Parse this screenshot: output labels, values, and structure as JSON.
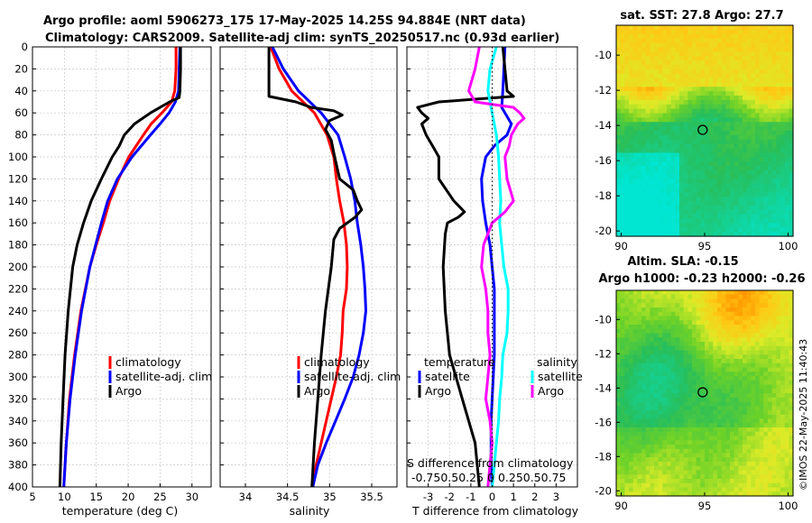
{
  "header": {
    "line1": "Argo profile: aoml 5906273_175 17-May-2025 14.25S 94.884E (NRT data)",
    "line2": "Climatology: CARS2009. Satellite-adj clim: synTS_20250517.nc (0.93d earlier)"
  },
  "colors": {
    "clim": "#ff0000",
    "sat": "#0000ff",
    "argo": "#000000",
    "sat_sal": "#00ffff",
    "argo_sal": "#ff00ff",
    "grid": "#c8c8c8"
  },
  "chart_data": [
    {
      "type": "line",
      "id": "temperature",
      "xlabel": "temperature (deg C)",
      "xlim": [
        5,
        33
      ],
      "ylim": [
        0,
        400
      ],
      "xticks": [
        "5",
        "10",
        "15",
        "20",
        "25",
        "30"
      ],
      "yticks": [
        "0",
        "20",
        "40",
        "60",
        "80",
        "100",
        "120",
        "140",
        "160",
        "180",
        "200",
        "220",
        "240",
        "260",
        "280",
        "300",
        "320",
        "340",
        "360",
        "380",
        "400"
      ],
      "series": [
        {
          "name": "climatology",
          "color": "#ff0000",
          "pressure": [
            0,
            20,
            40,
            50,
            60,
            70,
            80,
            100,
            120,
            140,
            160,
            180,
            200,
            240,
            280,
            320,
            360,
            400
          ],
          "values": [
            27.5,
            27.5,
            27.3,
            26.8,
            25.3,
            23.6,
            22.4,
            20.1,
            18.5,
            17.1,
            16.1,
            15.0,
            14.0,
            12.6,
            11.6,
            10.8,
            10.3,
            9.9
          ]
        },
        {
          "name": "satellite-adj. clim",
          "color": "#0000ff",
          "pressure": [
            0,
            20,
            40,
            50,
            60,
            70,
            80,
            100,
            120,
            140,
            160,
            180,
            200,
            240,
            280,
            320,
            360,
            400
          ],
          "values": [
            28.1,
            28.0,
            27.9,
            27.4,
            26.4,
            25.0,
            23.5,
            20.6,
            18.3,
            16.8,
            15.8,
            14.9,
            14.0,
            12.7,
            11.7,
            10.9,
            10.3,
            9.9
          ]
        },
        {
          "name": "Argo",
          "color": "#000000",
          "pressure": [
            0,
            20,
            40,
            46,
            50,
            60,
            70,
            80,
            90,
            100,
            120,
            140,
            160,
            180,
            200,
            240,
            280,
            320,
            360,
            400
          ],
          "values": [
            28.2,
            28.2,
            28.1,
            28.0,
            26.5,
            23.5,
            21.0,
            19.4,
            18.6,
            17.5,
            15.8,
            14.2,
            13.0,
            12.0,
            11.3,
            10.6,
            10.1,
            9.8,
            9.5,
            9.3
          ]
        }
      ],
      "legend": [
        "climatology",
        "satellite-adj. clim",
        "Argo"
      ]
    },
    {
      "type": "line",
      "id": "salinity",
      "xlabel": "salinity",
      "xlim": [
        33.7,
        35.8
      ],
      "ylim": [
        0,
        400
      ],
      "xticks": [
        "34",
        "34.5",
        "35",
        "35.5"
      ],
      "series": [
        {
          "name": "climatology",
          "color": "#ff0000",
          "pressure": [
            0,
            20,
            40,
            60,
            80,
            100,
            120,
            140,
            160,
            180,
            200,
            220,
            240,
            260,
            280,
            300,
            320,
            340,
            360,
            380,
            400
          ],
          "values": [
            34.3,
            34.4,
            34.55,
            34.82,
            34.97,
            35.05,
            35.08,
            35.12,
            35.17,
            35.2,
            35.21,
            35.2,
            35.16,
            35.15,
            35.13,
            35.08,
            35.02,
            34.96,
            34.9,
            34.84,
            34.8
          ]
        },
        {
          "name": "satellite-adj. clim",
          "color": "#0000ff",
          "pressure": [
            0,
            20,
            40,
            60,
            80,
            100,
            120,
            140,
            160,
            180,
            200,
            220,
            240,
            260,
            280,
            300,
            320,
            340,
            360,
            380,
            400
          ],
          "values": [
            34.32,
            34.45,
            34.63,
            34.9,
            35.1,
            35.18,
            35.25,
            35.3,
            35.33,
            35.37,
            35.4,
            35.42,
            35.43,
            35.4,
            35.35,
            35.28,
            35.18,
            35.07,
            34.96,
            34.86,
            34.8
          ]
        },
        {
          "name": "Argo",
          "color": "#000000",
          "pressure": [
            0,
            45,
            50,
            55,
            58,
            62,
            67,
            75,
            85,
            100,
            120,
            130,
            140,
            148,
            155,
            165,
            175,
            200,
            240,
            280,
            320,
            360,
            400
          ],
          "values": [
            34.28,
            34.28,
            34.6,
            34.78,
            35.05,
            35.15,
            35.0,
            34.95,
            35.02,
            35.06,
            35.12,
            35.28,
            35.33,
            35.38,
            35.3,
            35.12,
            35.05,
            35.02,
            34.95,
            34.9,
            34.86,
            34.82,
            34.79
          ]
        }
      ],
      "legend": [
        "climatology",
        "satellite-adj. clim",
        "Argo"
      ]
    },
    {
      "type": "line",
      "id": "differences",
      "xlabel": "T difference from climatology",
      "top_label": "S difference from climatology",
      "top_ticks": "-0.750.50.25 0  0.250.50.75",
      "xlim": [
        -4,
        4
      ],
      "ylim": [
        0,
        400
      ],
      "xticks": [
        "-3",
        "-2",
        "-1",
        "0",
        "1",
        "2",
        "3"
      ],
      "series": [
        {
          "name": "temperature satellite",
          "color": "#0000ff",
          "pressure": [
            0,
            20,
            40,
            55,
            60,
            70,
            80,
            90,
            100,
            110,
            120,
            140,
            160,
            180,
            200,
            220,
            240,
            260,
            280,
            300,
            320,
            340,
            360,
            380,
            400
          ],
          "values": [
            0.6,
            0.55,
            0.5,
            0.45,
            0.6,
            0.9,
            0.7,
            0.1,
            -0.3,
            -0.4,
            -0.5,
            -0.45,
            -0.3,
            -0.1,
            0.0,
            0.1,
            0.1,
            0.1,
            0.1,
            0.05,
            0.0,
            -0.05,
            -0.05,
            -0.05,
            0.0
          ]
        },
        {
          "name": "temperature Argo",
          "color": "#000000",
          "pressure": [
            0,
            20,
            40,
            45,
            50,
            55,
            60,
            65,
            70,
            80,
            90,
            100,
            120,
            140,
            150,
            155,
            160,
            170,
            200,
            240,
            280,
            320,
            360,
            400
          ],
          "values": [
            0.5,
            0.6,
            0.7,
            1.0,
            -2.5,
            -3.5,
            -3.3,
            -3.0,
            -3.3,
            -3.1,
            -2.8,
            -2.5,
            -2.5,
            -1.8,
            -1.3,
            -1.6,
            -2.1,
            -2.2,
            -2.3,
            -2.2,
            -2.0,
            -1.4,
            -0.8,
            -0.6
          ]
        },
        {
          "name": "salinity satellite",
          "color": "#00ffff",
          "pressure": [
            0,
            20,
            40,
            60,
            80,
            100,
            120,
            140,
            160,
            180,
            200,
            220,
            240,
            260,
            280,
            300,
            320,
            340,
            360,
            380,
            400
          ],
          "values": [
            0.2,
            -0.1,
            -0.2,
            0.0,
            0.2,
            0.3,
            0.35,
            0.4,
            0.35,
            0.45,
            0.55,
            0.75,
            0.75,
            0.7,
            0.5,
            0.45,
            0.35,
            0.3,
            0.2,
            0.1,
            0.0
          ]
        },
        {
          "name": "salinity Argo",
          "color": "#ff00ff",
          "pressure": [
            0,
            20,
            40,
            50,
            55,
            60,
            65,
            70,
            80,
            90,
            100,
            120,
            140,
            150,
            160,
            180,
            200,
            220,
            240,
            260,
            280,
            300,
            320,
            340,
            360,
            380,
            400
          ],
          "values": [
            -0.6,
            -0.8,
            -1.1,
            -0.8,
            1.0,
            1.3,
            1.5,
            1.2,
            0.9,
            0.8,
            0.6,
            0.7,
            1.0,
            0.6,
            0.0,
            -0.4,
            -0.5,
            -0.3,
            -0.2,
            -0.2,
            -0.1,
            -0.2,
            -0.3,
            -0.1,
            0.0,
            -0.1,
            -0.2
          ]
        }
      ],
      "legend_left_title": "temperature",
      "legend_right_title": "salinity",
      "legend_left": [
        "satellite",
        "Argo"
      ],
      "legend_right": [
        "satellite",
        "Argo"
      ]
    },
    {
      "type": "heatmap",
      "id": "sst_map",
      "title": "sat. SST: 27.8 Argo: 27.7",
      "xticks": [
        "90",
        "95",
        "100"
      ],
      "yticks": [
        "-10",
        "-12",
        "-14",
        "-16",
        "-18",
        "-20"
      ],
      "xlim": [
        89.7,
        100.3
      ],
      "ylim": [
        -20.3,
        -8.3
      ],
      "float_lon": 94.88,
      "float_lat": -14.25
    },
    {
      "type": "heatmap",
      "id": "sla_map",
      "title1": "Altim. SLA: -0.15",
      "title2": "Argo h1000: -0.23 h2000: -0.26",
      "xticks": [
        "90",
        "95",
        "100"
      ],
      "yticks": [
        "-10",
        "-12",
        "-14",
        "-16",
        "-18",
        "-20"
      ],
      "xlim": [
        89.7,
        100.3
      ],
      "ylim": [
        -20.3,
        -8.3
      ],
      "float_lon": 94.88,
      "float_lat": -14.25
    }
  ],
  "watermark": "©IMOS 22-May-2025 11:40:43"
}
